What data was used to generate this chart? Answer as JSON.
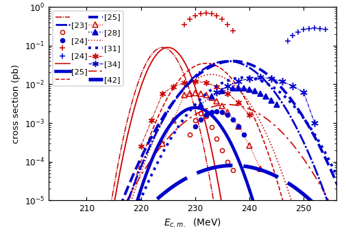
{
  "xlabel": "E_{c.m.}  (MeV)",
  "ylabel": "cross section (pb)",
  "xlim": [
    203,
    256
  ],
  "red_color": "#cc0000",
  "blue_color": "#0000cc",
  "legend_labels": [
    "[23]",
    "[24]",
    "[24]",
    "[25]",
    "[25]",
    "[28]",
    "[31]",
    "[34]",
    "[42]"
  ]
}
